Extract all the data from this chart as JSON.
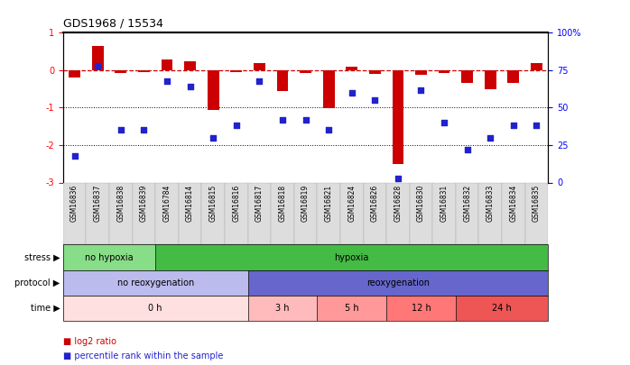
{
  "title": "GDS1968 / 15534",
  "samples": [
    "GSM16836",
    "GSM16837",
    "GSM16838",
    "GSM16839",
    "GSM16784",
    "GSM16814",
    "GSM16815",
    "GSM16816",
    "GSM16817",
    "GSM16818",
    "GSM16819",
    "GSM16821",
    "GSM16824",
    "GSM16826",
    "GSM16828",
    "GSM16830",
    "GSM16831",
    "GSM16832",
    "GSM16833",
    "GSM16834",
    "GSM16835"
  ],
  "log2_ratio": [
    -0.2,
    0.65,
    -0.08,
    -0.05,
    0.28,
    0.25,
    -1.05,
    -0.05,
    0.18,
    -0.55,
    -0.08,
    -1.02,
    0.1,
    -0.1,
    -2.5,
    -0.12,
    -0.08,
    -0.35,
    -0.5,
    -0.35,
    0.2
  ],
  "percentile": [
    18,
    78,
    35,
    35,
    68,
    64,
    30,
    38,
    68,
    42,
    42,
    35,
    60,
    55,
    3,
    62,
    40,
    22,
    30,
    38,
    38
  ],
  "bar_color": "#cc0000",
  "dot_color": "#2222cc",
  "ylim_left": [
    -3,
    1
  ],
  "ylim_right": [
    0,
    100
  ],
  "y_ticks_left": [
    -3,
    -2,
    -1,
    0,
    1
  ],
  "y_ticks_right": [
    0,
    25,
    50,
    75,
    100
  ],
  "y_tick_labels_right": [
    "0",
    "25",
    "50",
    "75",
    "100%"
  ],
  "dotline_y": [
    -1,
    -2
  ],
  "stress_segs": [
    {
      "label": "no hypoxia",
      "start": 0,
      "end": 4,
      "color": "#88dd88"
    },
    {
      "label": "hypoxia",
      "start": 4,
      "end": 21,
      "color": "#44bb44"
    }
  ],
  "protocol_segs": [
    {
      "label": "no reoxygenation",
      "start": 0,
      "end": 8,
      "color": "#bbbbee"
    },
    {
      "label": "reoxygenation",
      "start": 8,
      "end": 21,
      "color": "#6666cc"
    }
  ],
  "time_segs": [
    {
      "label": "0 h",
      "start": 0,
      "end": 8,
      "color": "#ffe0e0"
    },
    {
      "label": "3 h",
      "start": 8,
      "end": 11,
      "color": "#ffbbbb"
    },
    {
      "label": "5 h",
      "start": 11,
      "end": 14,
      "color": "#ff9999"
    },
    {
      "label": "12 h",
      "start": 14,
      "end": 17,
      "color": "#ff7777"
    },
    {
      "label": "24 h",
      "start": 17,
      "end": 21,
      "color": "#ee5555"
    }
  ],
  "row_labels": [
    "stress",
    "protocol",
    "time"
  ],
  "legend_labels": [
    "log2 ratio",
    "percentile rank within the sample"
  ]
}
